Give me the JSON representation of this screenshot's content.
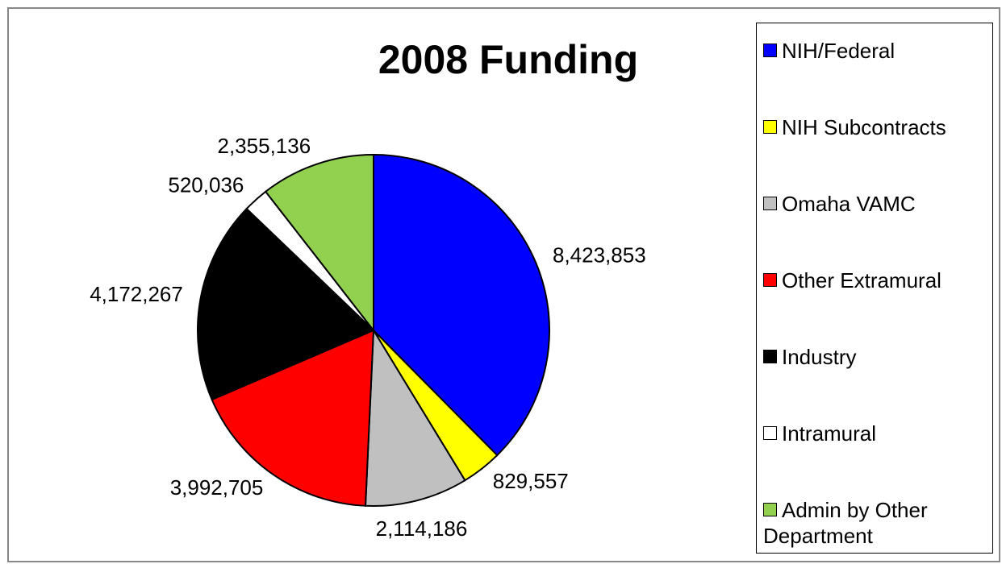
{
  "chart_data": {
    "type": "pie",
    "title": "2008 Funding",
    "categories": [
      "NIH/Federal",
      "NIH Subcontracts",
      "Omaha VAMC",
      "Other Extramural",
      "Industry",
      "Intramural",
      "Admin by Other Department"
    ],
    "values": [
      8423853,
      829557,
      2114186,
      3992705,
      4172267,
      520036,
      2355136
    ],
    "value_labels": [
      "8,423,853",
      "829,557",
      "2,114,186",
      "3,992,705",
      "4,172,267",
      "520,036",
      "2,355,136"
    ],
    "colors": [
      "#0000ff",
      "#ffff00",
      "#c0c0c0",
      "#ff0000",
      "#000000",
      "#ffffff",
      "#92d050"
    ],
    "legend": "right"
  }
}
